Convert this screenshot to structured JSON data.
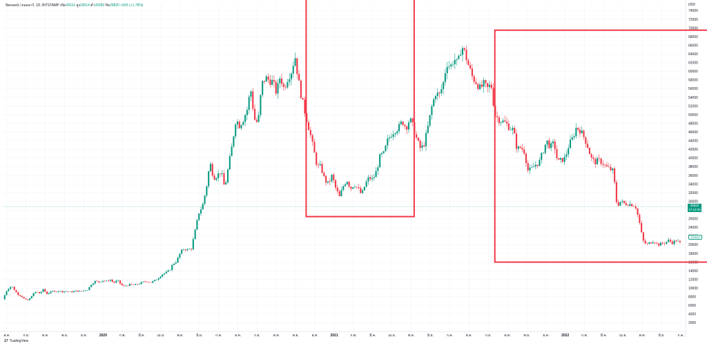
{
  "legend": {
    "symbol": "บิตคอยน์ / ดอลลาร์, 1D, BITSTAMP",
    "open_label": "เปิด",
    "open_value": "28316",
    "high_label": "สูง",
    "high_value": "29014",
    "low_label": "ต่ำ",
    "low_value": "28280",
    "close_label": "ปิด",
    "close_value": "28820",
    "change": "+505 (+1.78%)"
  },
  "currency": "USD",
  "branding": {
    "logo": "17",
    "name": "TradingView"
  },
  "price_tag": {
    "value": "28820",
    "countdown": "17:12:09"
  },
  "price_tag2": {
    "value": "21044"
  },
  "colors": {
    "up": "#089981",
    "down": "#f23645",
    "box": "#f23645",
    "grid": "#f0f3fa"
  },
  "chart_data": {
    "type": "candlestick",
    "y_axis": {
      "ticks": [
        2000,
        4000,
        6000,
        8000,
        10000,
        12000,
        14000,
        16000,
        18000,
        20000,
        22000,
        24000,
        26000,
        28000,
        30000,
        32000,
        34000,
        36000,
        38000,
        40000,
        42000,
        44000,
        46000,
        48000,
        50000,
        52000,
        54000,
        56000,
        58000,
        60000,
        62000,
        64000,
        66000,
        68000,
        70000,
        72000,
        74000
      ],
      "range": [
        0,
        75500
      ]
    },
    "x_axis": {
      "tick_labels": [
        "ส.ค.",
        "ก.ย.",
        "ต.ค.",
        "พ.ย.",
        "ธ.ค.",
        "2020",
        "ก.พ.",
        "มี.ค.",
        "เม.ย.",
        "พ.ค.",
        "มิ.ย.",
        "ก.ค.",
        "ส.ค.",
        "ก.ย.",
        "ต.ค.",
        "พ.ย.",
        "ธ.ค.",
        "2021",
        "ก.พ.",
        "มี.ค.",
        "เม.ย.",
        "พ.ค.",
        "มิ.ย.",
        "ก.ค.",
        "ส.ค.",
        "ก.ย.",
        "ต.ค.",
        "พ.ย.",
        "ธ.ค.",
        "2022",
        "ก.พ.",
        "มี.ค.",
        "เม.ย.",
        "พ.ค.",
        "มิ.ย.",
        "ก.ค."
      ],
      "bold_labels": [
        "2020",
        "2021",
        "2022"
      ]
    },
    "close_path": [
      [
        0,
        7400
      ],
      [
        6,
        9700
      ],
      [
        12,
        10500
      ],
      [
        20,
        8600
      ],
      [
        25,
        8200
      ],
      [
        30,
        7300
      ],
      [
        35,
        7200
      ],
      [
        40,
        8500
      ],
      [
        45,
        9200
      ],
      [
        50,
        8800
      ],
      [
        55,
        9700
      ],
      [
        60,
        8600
      ],
      [
        65,
        9300
      ],
      [
        70,
        9100
      ],
      [
        75,
        9400
      ],
      [
        80,
        9200
      ],
      [
        85,
        9300
      ],
      [
        90,
        9100
      ],
      [
        95,
        9200
      ],
      [
        100,
        9400
      ],
      [
        105,
        9200
      ],
      [
        110,
        9500
      ],
      [
        115,
        9700
      ],
      [
        120,
        11000
      ],
      [
        125,
        11600
      ],
      [
        130,
        11400
      ],
      [
        135,
        11800
      ],
      [
        140,
        11500
      ],
      [
        145,
        12000
      ],
      [
        150,
        11200
      ],
      [
        155,
        11800
      ],
      [
        160,
        10800
      ],
      [
        163,
        10400
      ],
      [
        167,
        10600
      ],
      [
        172,
        10800
      ],
      [
        178,
        10700
      ],
      [
        184,
        11000
      ],
      [
        190,
        11400
      ],
      [
        195,
        11600
      ],
      [
        200,
        11300
      ],
      [
        205,
        11700
      ],
      [
        210,
        12300
      ],
      [
        215,
        13200
      ],
      [
        220,
        13500
      ],
      [
        225,
        14000
      ],
      [
        230,
        15600
      ],
      [
        235,
        16200
      ],
      [
        240,
        18200
      ],
      [
        245,
        19100
      ],
      [
        250,
        18800
      ],
      [
        255,
        19200
      ],
      [
        260,
        23200
      ],
      [
        265,
        27400
      ],
      [
        270,
        29000
      ],
      [
        275,
        33000
      ],
      [
        280,
        39000
      ],
      [
        285,
        35500
      ],
      [
        290,
        36000
      ],
      [
        295,
        37000
      ],
      [
        300,
        33000
      ],
      [
        305,
        38000
      ],
      [
        310,
        43000
      ],
      [
        315,
        49000
      ],
      [
        320,
        47500
      ],
      [
        325,
        49000
      ],
      [
        330,
        51000
      ],
      [
        335,
        56000
      ],
      [
        340,
        49000
      ],
      [
        345,
        48000
      ],
      [
        350,
        57000
      ],
      [
        355,
        58500
      ],
      [
        360,
        58000
      ],
      [
        365,
        57500
      ],
      [
        370,
        55000
      ],
      [
        375,
        59000
      ],
      [
        380,
        56000
      ],
      [
        385,
        58500
      ],
      [
        390,
        60000
      ],
      [
        395,
        63500
      ],
      [
        400,
        57500
      ],
      [
        405,
        53000
      ],
      [
        410,
        49500
      ],
      [
        415,
        46000
      ],
      [
        420,
        42000
      ],
      [
        425,
        38000
      ],
      [
        430,
        38000
      ],
      [
        435,
        35000
      ],
      [
        440,
        34000
      ],
      [
        445,
        36000
      ],
      [
        450,
        33000
      ],
      [
        455,
        31000
      ],
      [
        460,
        33500
      ],
      [
        465,
        35000
      ],
      [
        470,
        33000
      ],
      [
        475,
        34000
      ],
      [
        480,
        33000
      ],
      [
        485,
        31500
      ],
      [
        490,
        34000
      ],
      [
        495,
        35500
      ],
      [
        500,
        35000
      ],
      [
        505,
        37000
      ],
      [
        510,
        40500
      ],
      [
        515,
        41000
      ],
      [
        520,
        44000
      ],
      [
        525,
        45500
      ],
      [
        530,
        46500
      ],
      [
        535,
        47000
      ],
      [
        540,
        48500
      ],
      [
        545,
        47000
      ],
      [
        550,
        49000
      ],
      [
        555,
        47000
      ],
      [
        560,
        44000
      ],
      [
        565,
        42000
      ],
      [
        570,
        43500
      ],
      [
        575,
        47500
      ],
      [
        580,
        52000
      ],
      [
        585,
        55000
      ],
      [
        590,
        54500
      ],
      [
        595,
        57000
      ],
      [
        600,
        62000
      ],
      [
        605,
        61000
      ],
      [
        610,
        63000
      ],
      [
        615,
        61500
      ],
      [
        620,
        66000
      ],
      [
        625,
        64000
      ],
      [
        630,
        61000
      ],
      [
        635,
        58500
      ],
      [
        640,
        57500
      ],
      [
        645,
        56000
      ],
      [
        650,
        57000
      ],
      [
        655,
        56000
      ],
      [
        660,
        57000
      ],
      [
        665,
        50000
      ],
      [
        670,
        49000
      ],
      [
        675,
        48500
      ],
      [
        680,
        48000
      ],
      [
        685,
        47000
      ],
      [
        690,
        46500
      ],
      [
        695,
        42000
      ],
      [
        700,
        42500
      ],
      [
        705,
        41500
      ],
      [
        710,
        37000
      ],
      [
        715,
        37500
      ],
      [
        720,
        38500
      ],
      [
        725,
        39000
      ],
      [
        730,
        41500
      ],
      [
        735,
        44000
      ],
      [
        740,
        42500
      ],
      [
        745,
        43500
      ],
      [
        750,
        39000
      ],
      [
        755,
        39500
      ],
      [
        760,
        40000
      ],
      [
        765,
        43000
      ],
      [
        770,
        44500
      ],
      [
        775,
        47000
      ],
      [
        780,
        46500
      ],
      [
        785,
        45000
      ],
      [
        790,
        43000
      ],
      [
        795,
        40000
      ],
      [
        800,
        39000
      ],
      [
        805,
        39500
      ],
      [
        810,
        39000
      ],
      [
        815,
        38000
      ],
      [
        820,
        37500
      ],
      [
        825,
        37000
      ],
      [
        830,
        29000
      ],
      [
        835,
        30000
      ],
      [
        840,
        29500
      ],
      [
        845,
        29500
      ],
      [
        850,
        29300
      ],
      [
        855,
        29000
      ],
      [
        860,
        25500
      ],
      [
        865,
        21000
      ],
      [
        870,
        20000
      ],
      [
        875,
        20500
      ],
      [
        880,
        21000
      ],
      [
        885,
        20000
      ],
      [
        890,
        20200
      ],
      [
        895,
        20500
      ],
      [
        900,
        21000
      ],
      [
        905,
        20500
      ],
      [
        910,
        21000
      ],
      [
        915,
        20400
      ]
    ],
    "current_price": 28820,
    "highlight_boxes": [
      {
        "x_start": 410,
        "x_end": 556,
        "y_top": 77500,
        "y_bottom": 26500
      },
      {
        "x_start": 665,
        "x_end": 993,
        "y_top": 69500,
        "y_bottom": 16000
      }
    ]
  }
}
